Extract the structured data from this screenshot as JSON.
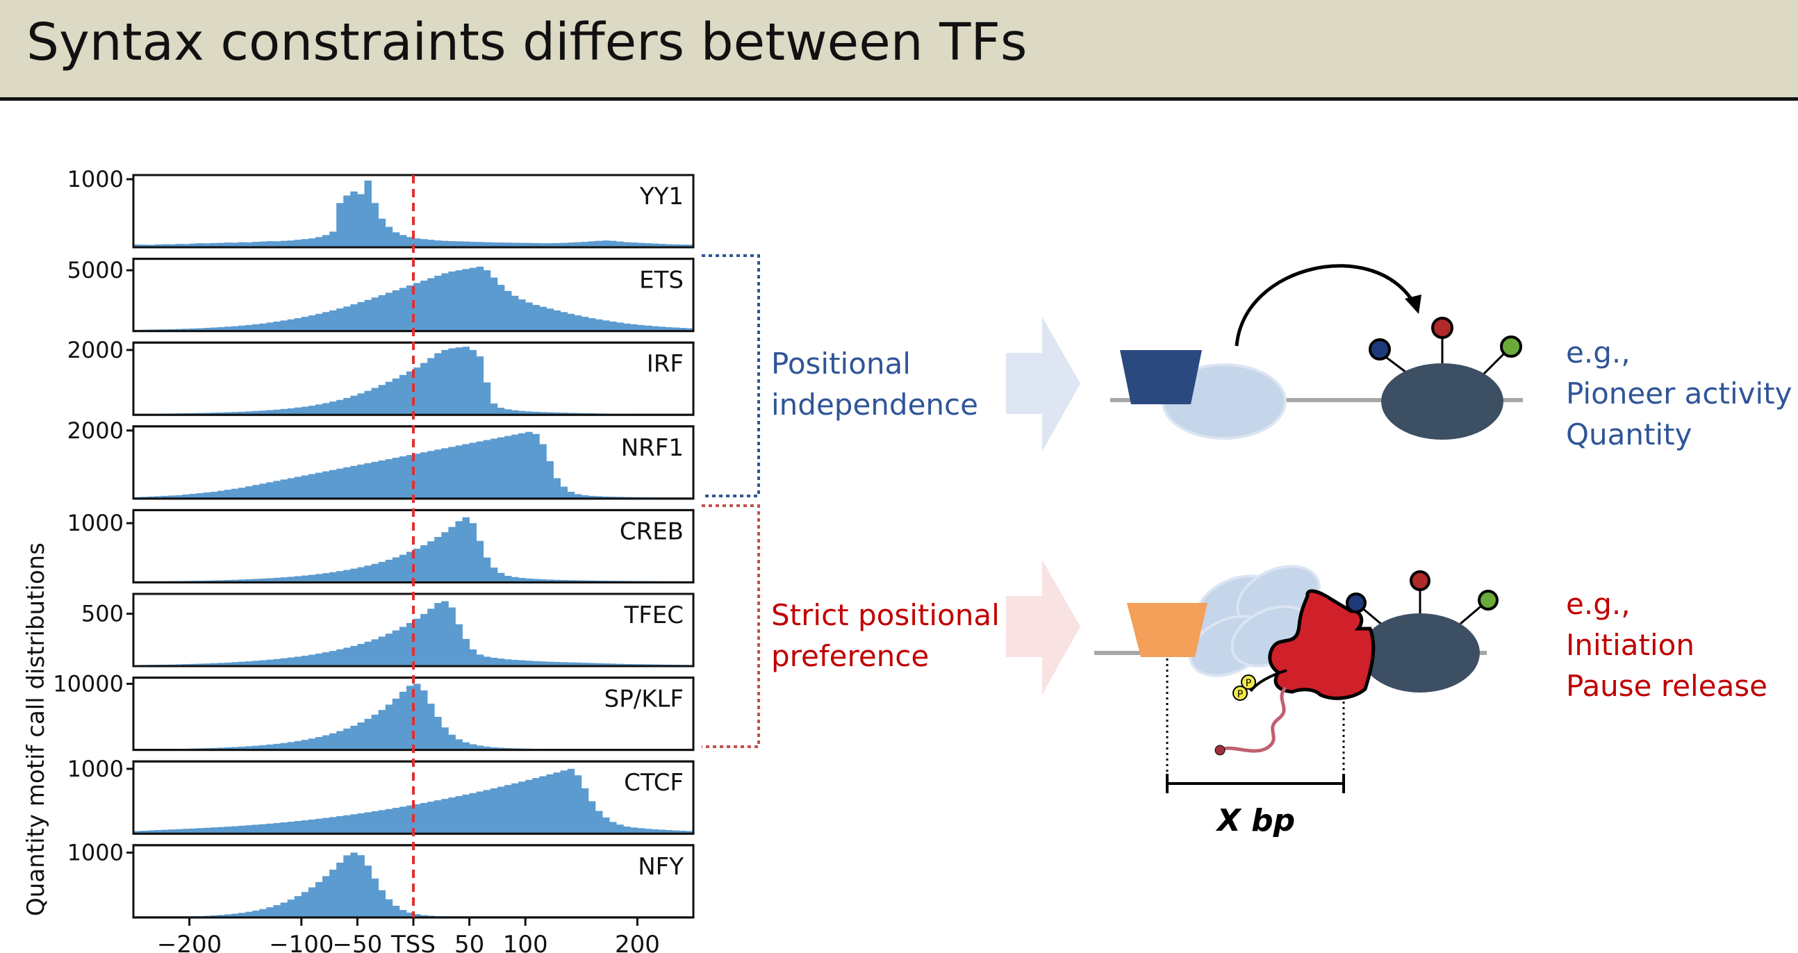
{
  "header": {
    "title": "Syntax constraints differs between TFs"
  },
  "chart_data": {
    "type": "bar",
    "ylabel": "Quantity motif call distributions",
    "x_ticks": [
      {
        "value": -200,
        "label": "−200"
      },
      {
        "value": -100,
        "label": "−100"
      },
      {
        "value": -50,
        "label": "−50"
      },
      {
        "value": 0,
        "label": "TSS"
      },
      {
        "value": 50,
        "label": "50"
      },
      {
        "value": 100,
        "label": "100"
      },
      {
        "value": 200,
        "label": "200"
      }
    ],
    "xlim": [
      -250,
      250
    ],
    "bin_width": 5,
    "reference_line": {
      "x": 0,
      "color": "#e03030",
      "style": "dashed"
    },
    "bar_color": "#5b9bd0",
    "panels": [
      {
        "name": "YY1",
        "ytick": 1000,
        "ytick_label": "1000",
        "ymax": 1000,
        "values": [
          40,
          38,
          36,
          42,
          45,
          44,
          50,
          48,
          55,
          60,
          58,
          62,
          65,
          70,
          68,
          75,
          72,
          80,
          85,
          90,
          88,
          95,
          100,
          110,
          120,
          130,
          150,
          180,
          230,
          650,
          760,
          820,
          780,
          980,
          650,
          420,
          300,
          220,
          180,
          150,
          130,
          120,
          110,
          100,
          95,
          90,
          88,
          85,
          80,
          78,
          75,
          72,
          70,
          68,
          66,
          65,
          64,
          62,
          60,
          60,
          62,
          65,
          70,
          75,
          80,
          88,
          95,
          100,
          95,
          85,
          75,
          70,
          65,
          60,
          55,
          50,
          45,
          42,
          40,
          38
        ]
      },
      {
        "name": "ETS",
        "ytick": 5000,
        "ytick_label": "5000",
        "ymax": 5600,
        "values": [
          100,
          110,
          120,
          130,
          140,
          150,
          170,
          190,
          210,
          230,
          260,
          290,
          320,
          360,
          400,
          450,
          500,
          560,
          620,
          700,
          780,
          870,
          960,
          1060,
          1170,
          1290,
          1420,
          1560,
          1700,
          1860,
          2020,
          2200,
          2380,
          2560,
          2760,
          2950,
          3150,
          3350,
          3550,
          3750,
          3950,
          4150,
          4350,
          4550,
          4750,
          4900,
          5000,
          5100,
          5200,
          5300,
          5000,
          4400,
          3800,
          3300,
          2900,
          2600,
          2350,
          2150,
          2000,
          1850,
          1700,
          1560,
          1420,
          1290,
          1170,
          1060,
          960,
          870,
          780,
          700,
          620,
          560,
          500,
          450,
          400,
          360,
          320,
          290,
          260,
          230
        ]
      },
      {
        "name": "IRF",
        "ytick": 2000,
        "ytick_label": "2000",
        "ymax": 2100,
        "values": [
          30,
          32,
          34,
          36,
          38,
          40,
          44,
          48,
          52,
          56,
          60,
          66,
          72,
          80,
          88,
          96,
          106,
          118,
          130,
          145,
          160,
          180,
          200,
          225,
          250,
          280,
          320,
          360,
          410,
          460,
          520,
          590,
          660,
          740,
          830,
          920,
          1020,
          1120,
          1230,
          1340,
          1460,
          1600,
          1750,
          1900,
          2000,
          2050,
          2080,
          2100,
          2000,
          1800,
          1000,
          350,
          220,
          170,
          140,
          120,
          105,
          95,
          85,
          78,
          72,
          66,
          60,
          55,
          50,
          46,
          42,
          38,
          35,
          32,
          30,
          28,
          26,
          24,
          22,
          20,
          19,
          18,
          17,
          16
        ]
      },
      {
        "name": "NRF1",
        "ytick": 2000,
        "ytick_label": "2000",
        "ymax": 2000,
        "values": [
          40,
          50,
          60,
          70,
          80,
          90,
          100,
          120,
          140,
          160,
          180,
          200,
          230,
          260,
          290,
          320,
          360,
          400,
          440,
          480,
          520,
          560,
          600,
          640,
          680,
          720,
          760,
          800,
          840,
          880,
          920,
          960,
          1000,
          1040,
          1080,
          1120,
          1160,
          1200,
          1240,
          1280,
          1320,
          1360,
          1400,
          1440,
          1480,
          1520,
          1560,
          1600,
          1640,
          1680,
          1720,
          1760,
          1800,
          1840,
          1880,
          1920,
          1960,
          1900,
          1600,
          1100,
          600,
          350,
          200,
          130,
          100,
          80,
          70,
          60,
          55,
          50,
          45,
          42,
          40,
          38,
          36,
          34,
          32,
          30,
          28,
          26
        ]
      },
      {
        "name": "CREB",
        "ytick": 1000,
        "ytick_label": "1000",
        "ymax": 1150,
        "values": [
          15,
          16,
          17,
          18,
          19,
          20,
          22,
          24,
          26,
          28,
          30,
          33,
          36,
          40,
          44,
          48,
          53,
          58,
          64,
          70,
          77,
          85,
          94,
          104,
          115,
          127,
          140,
          155,
          172,
          190,
          210,
          232,
          256,
          283,
          313,
          346,
          382,
          422,
          466,
          515,
          569,
          628,
          694,
          767,
          847,
          936,
          1034,
          1100,
          1000,
          700,
          420,
          250,
          160,
          110,
          90,
          75,
          65,
          58,
          52,
          47,
          43,
          40,
          37,
          35,
          33,
          31,
          29,
          27,
          26,
          25,
          24,
          23,
          22,
          21,
          20,
          19,
          18,
          17,
          16,
          15
        ]
      },
      {
        "name": "TFEC",
        "ytick": 500,
        "ytick_label": "500",
        "ymax": 650,
        "values": [
          10,
          11,
          12,
          13,
          14,
          15,
          17,
          19,
          21,
          23,
          25,
          28,
          31,
          34,
          38,
          42,
          46,
          51,
          56,
          62,
          68,
          75,
          82,
          90,
          99,
          109,
          120,
          132,
          145,
          160,
          176,
          193,
          212,
          233,
          256,
          282,
          310,
          341,
          375,
          412,
          453,
          498,
          548,
          603,
          620,
          560,
          400,
          260,
          160,
          110,
          90,
          80,
          72,
          65,
          60,
          56,
          52,
          48,
          45,
          42,
          40,
          38,
          36,
          34,
          32,
          30,
          28,
          26,
          24,
          22,
          20,
          19,
          18,
          17,
          16,
          15,
          14,
          13,
          12,
          11
        ]
      },
      {
        "name": "SP/KLF",
        "ytick": 10000,
        "ytick_label": "10000",
        "ymax": 10300,
        "values": [
          80,
          90,
          100,
          110,
          125,
          140,
          160,
          180,
          205,
          230,
          260,
          295,
          335,
          380,
          430,
          490,
          555,
          630,
          715,
          810,
          920,
          1040,
          1180,
          1340,
          1520,
          1720,
          1950,
          2210,
          2510,
          2850,
          3230,
          3660,
          4150,
          4700,
          5330,
          6040,
          6850,
          7760,
          8800,
          9700,
          10000,
          9000,
          7000,
          5000,
          3400,
          2300,
          1600,
          1150,
          850,
          650,
          500,
          400,
          330,
          280,
          240,
          210,
          185,
          165,
          148,
          133,
          120,
          108,
          98,
          89,
          81,
          74,
          68,
          62,
          57,
          52,
          48,
          44,
          40,
          37,
          34,
          31,
          28,
          26,
          24,
          22
        ]
      },
      {
        "name": "CTCF",
        "ytick": 1000,
        "ytick_label": "1000",
        "ymax": 1050,
        "values": [
          40,
          45,
          50,
          55,
          60,
          65,
          70,
          75,
          80,
          85,
          90,
          96,
          102,
          108,
          115,
          122,
          130,
          138,
          146,
          155,
          164,
          174,
          184,
          195,
          206,
          218,
          230,
          243,
          256,
          270,
          284,
          299,
          314,
          330,
          346,
          363,
          380,
          398,
          416,
          435,
          454,
          474,
          494,
          515,
          536,
          558,
          580,
          603,
          626,
          650,
          674,
          699,
          724,
          750,
          776,
          803,
          830,
          858,
          886,
          915,
          944,
          974,
          1000,
          900,
          700,
          500,
          350,
          250,
          180,
          140,
          110,
          95,
          85,
          75,
          68,
          62,
          56,
          50,
          45,
          40
        ]
      },
      {
        "name": "NFY",
        "ytick": 1000,
        "ytick_label": "1000",
        "ymax": 1050,
        "values": [
          2,
          3,
          4,
          5,
          6,
          8,
          10,
          13,
          16,
          20,
          25,
          31,
          38,
          47,
          58,
          71,
          87,
          106,
          129,
          157,
          190,
          229,
          275,
          329,
          392,
          464,
          546,
          637,
          737,
          845,
          958,
          1000,
          960,
          800,
          600,
          420,
          280,
          180,
          115,
          75,
          50,
          35,
          26,
          20,
          16,
          13,
          11,
          10,
          9,
          8,
          7,
          7,
          6,
          6,
          5,
          5,
          5,
          4,
          4,
          4,
          4,
          3,
          3,
          3,
          3,
          3,
          2,
          2,
          2,
          2,
          2,
          2,
          2,
          2,
          2,
          2,
          2,
          2,
          2,
          2
        ]
      }
    ]
  },
  "groups": {
    "positional": {
      "line1": "Positional",
      "line2": "independence",
      "color": "#2f5597"
    },
    "strict": {
      "line1": "Strict positional",
      "line2": "preference",
      "color": "#c00000"
    }
  },
  "examples": {
    "top": {
      "line1": "e.g.,",
      "line2": "Pioneer activity",
      "line3": "Quantity",
      "color": "#2f5597"
    },
    "bottom": {
      "line1": "e.g.,",
      "line2": "Initiation",
      "line3": "Pause release",
      "color": "#c00000"
    }
  },
  "diagram": {
    "distance_label": "X bp",
    "phospho_label": "P"
  },
  "colors": {
    "tf_top": "#2a4a7f",
    "tf_bottom": "#f4a05a",
    "nucleosome": "#c5d5ea",
    "polymerase_body": "#3d4f63",
    "pol_ii": "#d0202a",
    "dot_blue": "#1f3a7a",
    "dot_red": "#b02a2a",
    "dot_green": "#6aaa3a",
    "rna": "#c06070"
  }
}
